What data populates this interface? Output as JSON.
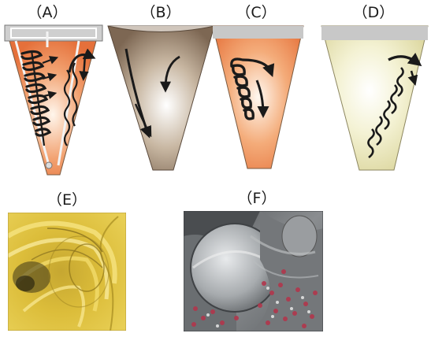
{
  "panels": [
    {
      "id": "A",
      "label": "（A）"
    },
    {
      "id": "B",
      "label": "（B）"
    },
    {
      "id": "C",
      "label": "（C）"
    },
    {
      "id": "D",
      "label": "（D）"
    },
    {
      "id": "E",
      "label": "（E）"
    },
    {
      "id": "F",
      "label": "（F）"
    }
  ],
  "colors": {
    "orange": "#e88045",
    "brown": "#8a7561",
    "cream": "#e6e2b0",
    "lid": "#c8c8c8",
    "arrow": "#1a1a1a",
    "photo_yellow": "#e3c43a",
    "photo_grey": "#6f7275",
    "photo_red": "#b2364c"
  }
}
